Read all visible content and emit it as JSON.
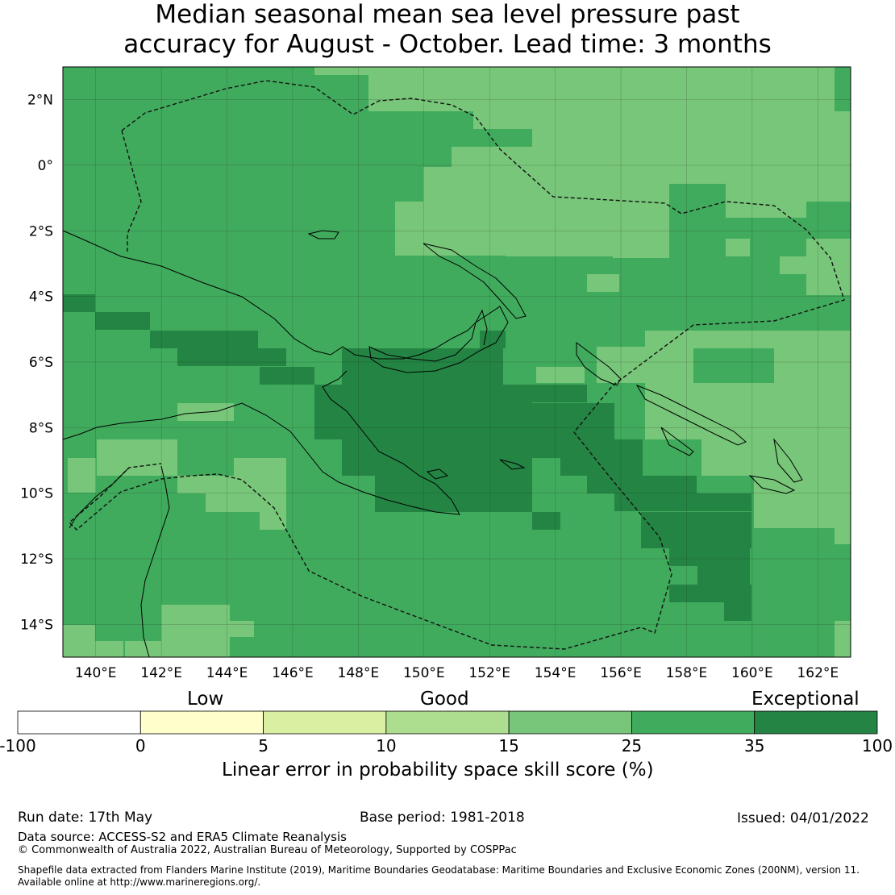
{
  "title": {
    "line1": "Median seasonal mean sea level pressure past",
    "line2": "accuracy for August - October. Lead time: 3 months"
  },
  "map": {
    "lon_ticks": [
      "140°E",
      "142°E",
      "144°E",
      "146°E",
      "148°E",
      "150°E",
      "152°E",
      "154°E",
      "156°E",
      "158°E",
      "160°E",
      "162°E"
    ],
    "lat_ticks": [
      "2°N",
      "0°",
      "2°S",
      "4°S",
      "6°S",
      "8°S",
      "10°S",
      "12°S",
      "14°S"
    ],
    "lon_range": [
      139,
      163
    ],
    "lat_range": [
      -15,
      3
    ],
    "colors": {
      "c25_35": "#41ab5d",
      "c15_25": "#78c679",
      "c35_100": "#238443",
      "c10_15": "#addd8e",
      "grid": "#222222"
    }
  },
  "colorbar": {
    "categories": [
      "Low",
      "Good",
      "Exceptional"
    ],
    "ticks": [
      "-100",
      "0",
      "5",
      "10",
      "15",
      "25",
      "35",
      "100"
    ],
    "colors": [
      "#ffffff",
      "#ffffcc",
      "#d9f0a3",
      "#addd8e",
      "#78c679",
      "#41ab5d",
      "#238443"
    ],
    "title": "Linear error in probability space skill score (%)"
  },
  "footer": {
    "run_date": "Run date: 17th May",
    "base_period": "Base period: 1981-2018",
    "issued": "Issued: 04/01/2022",
    "data_source": "Data source: ACCESS-S2 and ERA5 Climate Reanalysis",
    "copyright": "© Commonwealth of Australia 2022, Australian Bureau of Meteorology, Supported by COSPPac",
    "shapefile_line1": "Shapefile data extracted from Flanders Marine Institute (2019), Maritime Boundaries Geodatabase: Maritime Boundaries and Exclusive Economic Zones (200NM), version 11.",
    "shapefile_line2": "Available online at http://www.marineregions.org/."
  }
}
